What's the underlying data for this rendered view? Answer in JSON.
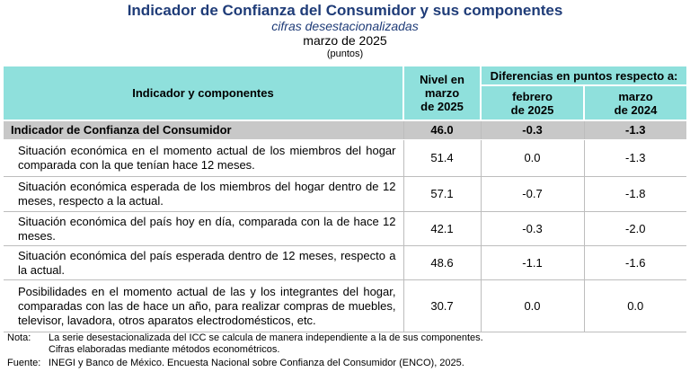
{
  "header": {
    "title": "Indicador de Confianza del Consumidor y sus componentes",
    "subtitle": "cifras desestacionalizadas",
    "period": "marzo de 2025",
    "units": "(puntos)"
  },
  "table": {
    "columns": {
      "indicator": "Indicador y componentes",
      "level": [
        "Nivel en",
        "marzo",
        "de 2025"
      ],
      "diff_group": "Diferencias en puntos respecto a:",
      "diff1": [
        "febrero",
        "de 2025"
      ],
      "diff2": [
        "marzo",
        "de 2024"
      ]
    },
    "summary": {
      "label": "Indicador de Confianza del Consumidor",
      "level": "46.0",
      "diff1": "-0.3",
      "diff2": "-1.3"
    },
    "rows": [
      {
        "label": "Situación económica en el momento actual de los miembros del hogar comparada con la que tenían hace 12 meses.",
        "level": "51.4",
        "diff1": "0.0",
        "diff2": "-1.3"
      },
      {
        "label": "Situación económica esperada de los miembros del hogar dentro de 12 meses, respecto a la actual.",
        "level": "57.1",
        "diff1": "-0.7",
        "diff2": "-1.8"
      },
      {
        "label": "Situación económica del país hoy en día, comparada con la de hace 12 meses.",
        "level": "42.1",
        "diff1": "-0.3",
        "diff2": "-2.0"
      },
      {
        "label": "Situación económica del país esperada dentro de 12 meses, respecto a la actual.",
        "level": "48.6",
        "diff1": "-1.1",
        "diff2": "-1.6"
      },
      {
        "label": "Posibilidades en el momento actual de las y los integrantes del hogar, comparadas con las de hace un año, para realizar compras de muebles, televisor, lavadora, otros aparatos electrodomésticos, etc.",
        "level": "30.7",
        "diff1": "0.0",
        "diff2": "0.0"
      }
    ]
  },
  "notes": {
    "note_label": "Nota:",
    "note_lines": [
      "La serie desestacionalizada del ICC se calcula de manera independiente a la de sus componentes.",
      "Cifras elaboradas mediante métodos econométricos."
    ],
    "source_label": "Fuente:",
    "source": "INEGI y Banco de México. Encuesta Nacional sobre Confianza del Consumidor (ENCO), 2025."
  }
}
